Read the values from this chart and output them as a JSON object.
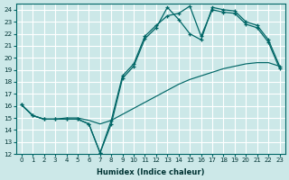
{
  "bg_color": "#cce8e8",
  "grid_color": "#ffffff",
  "line_color": "#006666",
  "xlabel": "Humidex (Indice chaleur)",
  "xlim": [
    -0.5,
    23.5
  ],
  "ylim": [
    12,
    24.5
  ],
  "xticks": [
    0,
    1,
    2,
    3,
    4,
    5,
    6,
    7,
    8,
    9,
    10,
    11,
    12,
    13,
    14,
    15,
    16,
    17,
    18,
    19,
    20,
    21,
    22,
    23
  ],
  "yticks": [
    12,
    13,
    14,
    15,
    16,
    17,
    18,
    19,
    20,
    21,
    22,
    23,
    24
  ],
  "line1_x": [
    0,
    1,
    2,
    3,
    4,
    5,
    6,
    7,
    8,
    9,
    10,
    11,
    12,
    13,
    14,
    15,
    16,
    17,
    18,
    19,
    20,
    21,
    22,
    23
  ],
  "line1_y": [
    16.1,
    15.2,
    14.9,
    14.9,
    14.9,
    14.9,
    14.5,
    12.1,
    14.5,
    18.3,
    19.3,
    21.6,
    22.5,
    24.2,
    23.2,
    22.0,
    21.5,
    24.2,
    24.0,
    23.9,
    23.0,
    22.7,
    21.5,
    19.3
  ],
  "line2_x": [
    0,
    1,
    2,
    3,
    4,
    5,
    6,
    7,
    8,
    9,
    10,
    11,
    12,
    13,
    14,
    15,
    16,
    17,
    18,
    19,
    20,
    21,
    22,
    23
  ],
  "line2_y": [
    16.1,
    15.2,
    14.9,
    14.9,
    15.0,
    15.0,
    14.8,
    14.5,
    14.8,
    15.3,
    15.8,
    16.3,
    16.8,
    17.3,
    17.8,
    18.2,
    18.5,
    18.8,
    19.1,
    19.3,
    19.5,
    19.6,
    19.6,
    19.3
  ],
  "line3_x": [
    0,
    1,
    2,
    3,
    4,
    5,
    6,
    7,
    8,
    9,
    10,
    11,
    12,
    13,
    14,
    15,
    16,
    17,
    18,
    19,
    20,
    21,
    22,
    23
  ],
  "line3_y": [
    16.1,
    15.2,
    14.9,
    14.9,
    14.9,
    14.9,
    14.5,
    12.1,
    14.8,
    18.5,
    19.5,
    21.8,
    22.7,
    23.5,
    23.7,
    24.3,
    21.8,
    24.0,
    23.8,
    23.7,
    22.8,
    22.5,
    21.3,
    19.1
  ]
}
